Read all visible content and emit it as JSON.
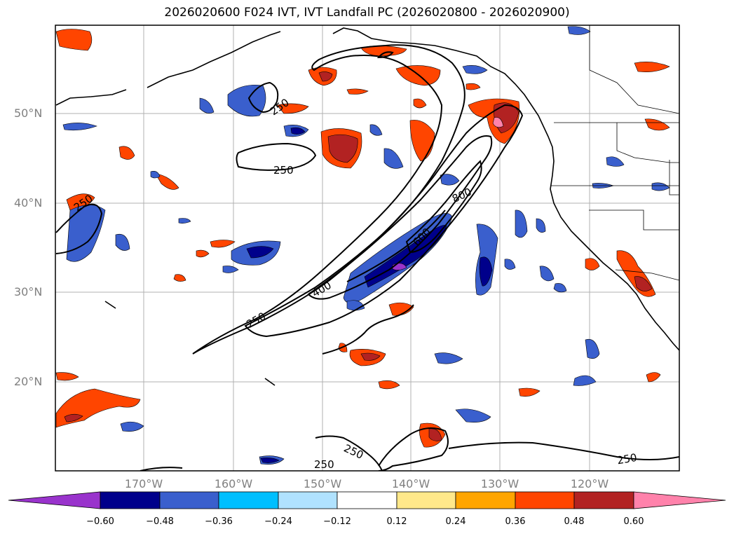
{
  "title": "2026020600 F024 IVT, IVT Landfall PC (2026020800 - 2026020900)",
  "lat_labels": [
    "50°N",
    "40°N",
    "30°N",
    "20°N"
  ],
  "lon_labels": [
    "170°W",
    "160°W",
    "150°W",
    "140°W",
    "130°W",
    "120°W"
  ],
  "contour_labels": [
    "250",
    "250",
    "250",
    "250",
    "250",
    "250",
    "400",
    "600",
    "800",
    "250"
  ],
  "colorbar": {
    "ticks": [
      "−0.60",
      "−0.48",
      "−0.36",
      "−0.24",
      "−0.12",
      "0.12",
      "0.24",
      "0.36",
      "0.48",
      "0.60"
    ],
    "colors": [
      "#9933cc",
      "#00008b",
      "#3a5fcd",
      "#00bfff",
      "#b0e2ff",
      "#ffffff",
      "#ffe88a",
      "#ffa500",
      "#ff4500",
      "#b22222",
      "#ff82ab"
    ]
  },
  "colors": {
    "neg_dark": "#00008b",
    "neg_mid": "#3a5fcd",
    "neg_light": "#00bfff",
    "neg_pale": "#b0e2ff",
    "pos_pale": "#ffe88a",
    "pos_light": "#ffa500",
    "pos_mid": "#ff4500",
    "pos_dark": "#b22222",
    "pos_max": "#ff82ab"
  }
}
